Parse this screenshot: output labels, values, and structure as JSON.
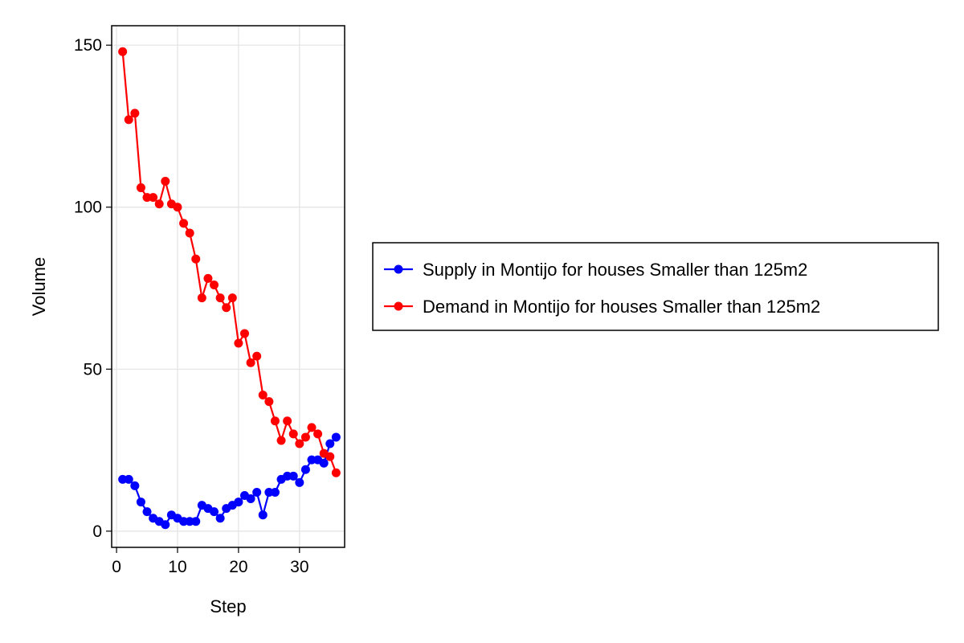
{
  "chart_data": {
    "type": "line",
    "title": "",
    "xlabel": "Step",
    "ylabel": "Volume",
    "xlim": [
      -0.8,
      37.4
    ],
    "ylim": [
      -5,
      156
    ],
    "xticks": [
      0,
      10,
      20,
      30
    ],
    "yticks": [
      0,
      50,
      100,
      150
    ],
    "grid": true,
    "legend_position": "right",
    "x": [
      1,
      2,
      3,
      4,
      5,
      6,
      7,
      8,
      9,
      10,
      11,
      12,
      13,
      14,
      15,
      16,
      17,
      18,
      19,
      20,
      21,
      22,
      23,
      24,
      25,
      26,
      27,
      28,
      29,
      30,
      31,
      32,
      33,
      34,
      35,
      36
    ],
    "series": [
      {
        "name": "Supply in Montijo for houses Smaller than 125m2",
        "color": "#0000ff",
        "values": [
          16,
          16,
          14,
          9,
          6,
          4,
          3,
          2,
          5,
          4,
          3,
          3,
          3,
          8,
          7,
          6,
          4,
          7,
          8,
          9,
          11,
          10,
          12,
          5,
          12,
          12,
          16,
          17,
          17,
          15,
          19,
          22,
          22,
          21,
          27,
          29
        ]
      },
      {
        "name": "Demand in Montijo for houses Smaller than 125m2",
        "color": "#ff0000",
        "values": [
          148,
          127,
          129,
          106,
          103,
          103,
          101,
          108,
          101,
          100,
          95,
          92,
          84,
          72,
          78,
          76,
          72,
          69,
          72,
          58,
          61,
          52,
          54,
          42,
          40,
          34,
          28,
          34,
          30,
          27,
          29,
          32,
          30,
          24,
          23,
          18
        ]
      }
    ]
  }
}
